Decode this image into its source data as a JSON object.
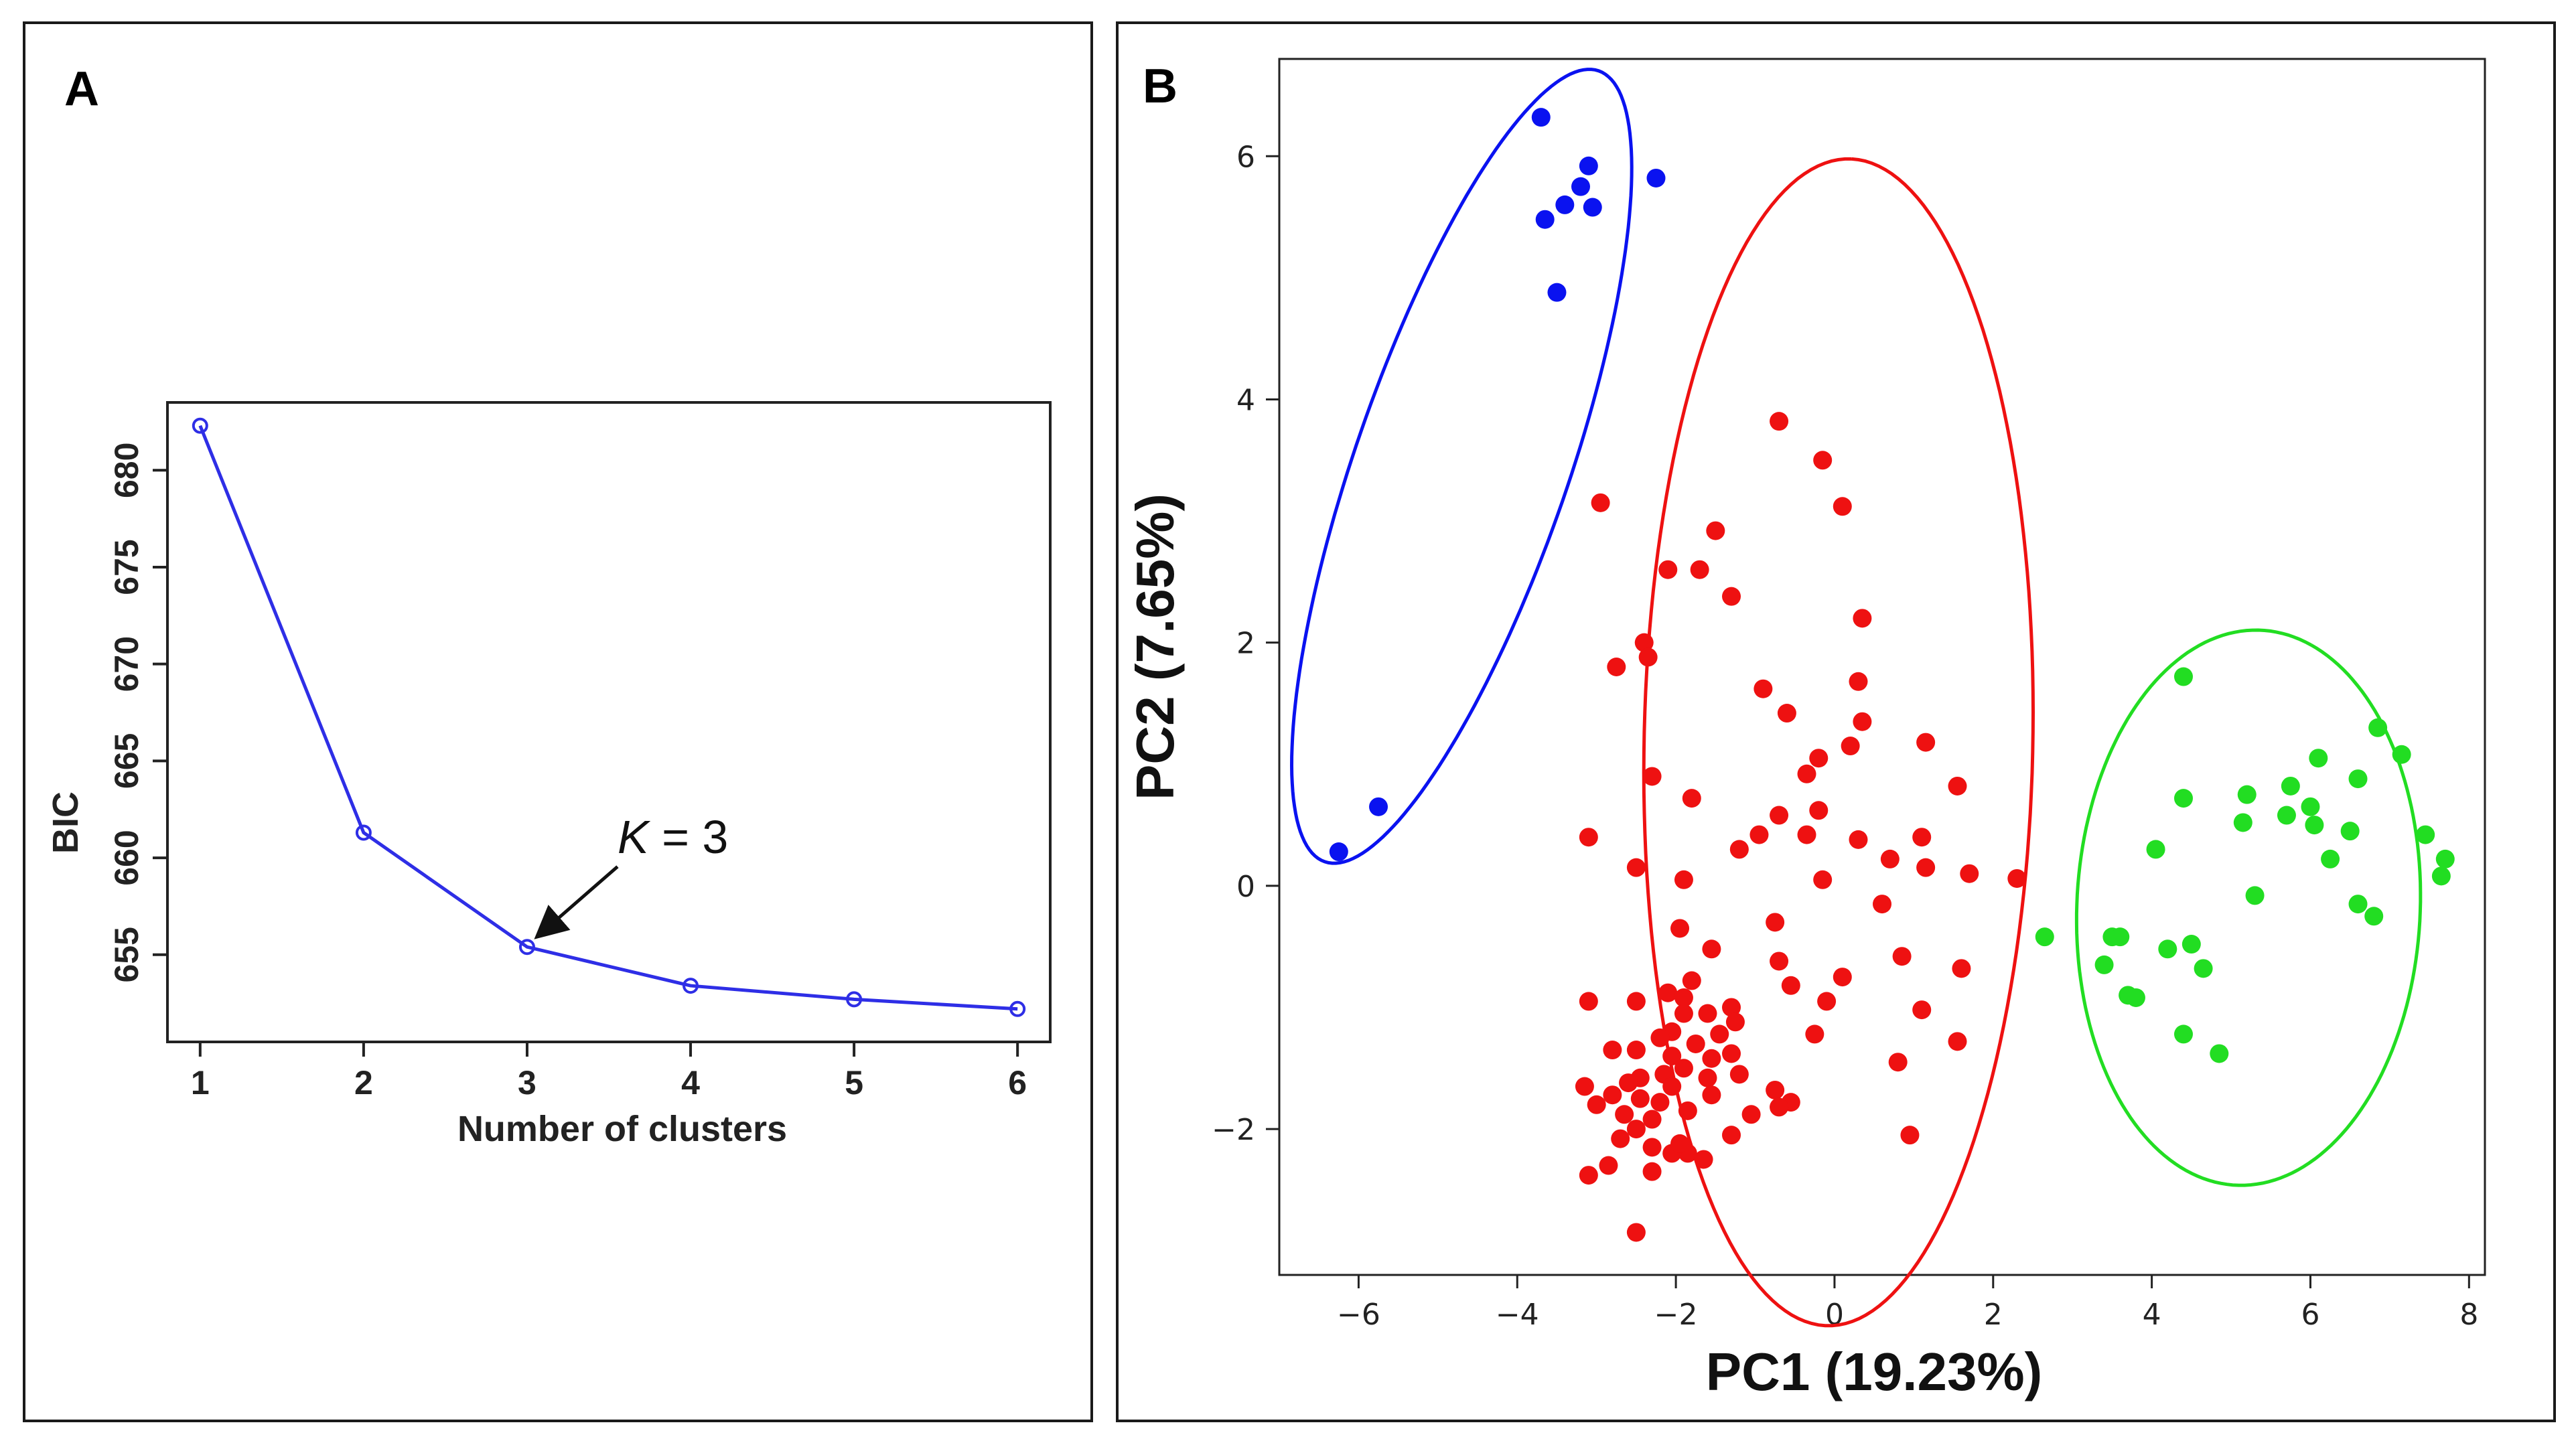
{
  "chart_data": [
    {
      "panel": "A",
      "type": "line",
      "xlabel": "Number of clusters",
      "ylabel": "BIC",
      "x": [
        1,
        2,
        3,
        4,
        5,
        6
      ],
      "y": [
        682.3,
        661.3,
        655.4,
        653.4,
        652.7,
        652.2
      ],
      "xlim": [
        0.8,
        6.2
      ],
      "ylim": [
        650.5,
        683.5
      ],
      "xticks": [
        1,
        2,
        3,
        4,
        5,
        6
      ],
      "yticks": [
        655,
        660,
        665,
        670,
        675,
        680
      ],
      "series_color": "#2e2ee6",
      "annotation": {
        "text_italic": "K",
        "text_rest": " = 3",
        "points_to": {
          "x": 3,
          "y": 655.4
        }
      }
    },
    {
      "panel": "B",
      "type": "scatter",
      "xlabel": "PC1 (19.23%)",
      "ylabel": "PC2 (7.65%)",
      "xlim": [
        -7,
        8.2
      ],
      "ylim": [
        -3.2,
        6.8
      ],
      "xticks": [
        -6,
        -4,
        -2,
        0,
        2,
        4,
        6,
        8
      ],
      "xtick_labels": [
        "−6",
        "−4",
        "−2",
        "0",
        "2",
        "4",
        "6",
        "8"
      ],
      "yticks": [
        -2,
        0,
        2,
        4,
        6
      ],
      "ytick_labels": [
        "−2",
        "0",
        "2",
        "4",
        "6"
      ],
      "series": [
        {
          "name": "cluster-blue",
          "color": "#0a12f0",
          "ellipse": {
            "cx": -4.7,
            "cy": 3.45,
            "rx": 3.7,
            "ry": 1.25,
            "angle_deg": 60
          },
          "points": [
            [
              -3.7,
              6.32
            ],
            [
              -3.1,
              5.92
            ],
            [
              -3.2,
              5.75
            ],
            [
              -2.25,
              5.82
            ],
            [
              -3.4,
              5.6
            ],
            [
              -3.05,
              5.58
            ],
            [
              -3.65,
              5.48
            ],
            [
              -3.5,
              4.88
            ],
            [
              -5.75,
              0.65
            ],
            [
              -6.25,
              0.28
            ]
          ]
        },
        {
          "name": "cluster-red",
          "color": "#ee1111",
          "ellipse": {
            "cx": 0.05,
            "cy": 1.18,
            "rx": 4.8,
            "ry": 2.45,
            "angle_deg": 88
          },
          "points": [
            [
              -0.7,
              3.82
            ],
            [
              -0.15,
              3.5
            ],
            [
              0.1,
              3.12
            ],
            [
              -2.95,
              3.15
            ],
            [
              -1.5,
              2.92
            ],
            [
              -2.1,
              2.6
            ],
            [
              -1.7,
              2.6
            ],
            [
              -1.3,
              2.38
            ],
            [
              0.35,
              2.2
            ],
            [
              -2.4,
              2.0
            ],
            [
              -2.35,
              1.88
            ],
            [
              -2.75,
              1.8
            ],
            [
              -0.9,
              1.62
            ],
            [
              0.3,
              1.68
            ],
            [
              -0.6,
              1.42
            ],
            [
              0.35,
              1.35
            ],
            [
              1.15,
              1.18
            ],
            [
              0.2,
              1.15
            ],
            [
              -0.2,
              1.05
            ],
            [
              -2.3,
              0.9
            ],
            [
              -0.35,
              0.92
            ],
            [
              1.55,
              0.82
            ],
            [
              -1.8,
              0.72
            ],
            [
              -0.7,
              0.58
            ],
            [
              -0.2,
              0.62
            ],
            [
              -3.1,
              0.4
            ],
            [
              -0.95,
              0.42
            ],
            [
              -0.35,
              0.42
            ],
            [
              0.3,
              0.38
            ],
            [
              1.1,
              0.4
            ],
            [
              -1.2,
              0.3
            ],
            [
              0.7,
              0.22
            ],
            [
              -2.5,
              0.15
            ],
            [
              1.15,
              0.15
            ],
            [
              1.7,
              0.1
            ],
            [
              2.3,
              0.06
            ],
            [
              -1.9,
              0.05
            ],
            [
              -0.15,
              0.05
            ],
            [
              0.6,
              -0.15
            ],
            [
              -1.95,
              -0.35
            ],
            [
              -0.75,
              -0.3
            ],
            [
              -1.55,
              -0.52
            ],
            [
              -0.7,
              -0.62
            ],
            [
              0.85,
              -0.58
            ],
            [
              1.6,
              -0.68
            ],
            [
              -0.55,
              -0.82
            ],
            [
              -1.8,
              -0.78
            ],
            [
              0.1,
              -0.75
            ],
            [
              -2.1,
              -0.88
            ],
            [
              -1.9,
              -0.92
            ],
            [
              -2.5,
              -0.95
            ],
            [
              -3.1,
              -0.95
            ],
            [
              -0.1,
              -0.95
            ],
            [
              -1.3,
              -1.0
            ],
            [
              -1.9,
              -1.05
            ],
            [
              -1.6,
              -1.05
            ],
            [
              1.1,
              -1.02
            ],
            [
              -1.25,
              -1.12
            ],
            [
              -2.05,
              -1.2
            ],
            [
              -2.2,
              -1.25
            ],
            [
              -1.45,
              -1.22
            ],
            [
              -0.25,
              -1.22
            ],
            [
              -1.75,
              -1.3
            ],
            [
              -2.5,
              -1.35
            ],
            [
              -2.05,
              -1.4
            ],
            [
              -1.3,
              -1.38
            ],
            [
              -1.55,
              -1.42
            ],
            [
              1.55,
              -1.28
            ],
            [
              -2.8,
              -1.35
            ],
            [
              -1.9,
              -1.5
            ],
            [
              -2.15,
              -1.55
            ],
            [
              -2.45,
              -1.58
            ],
            [
              -1.6,
              -1.58
            ],
            [
              -1.2,
              -1.55
            ],
            [
              0.8,
              -1.45
            ],
            [
              -3.15,
              -1.65
            ],
            [
              -2.6,
              -1.62
            ],
            [
              -2.05,
              -1.65
            ],
            [
              -1.55,
              -1.72
            ],
            [
              -0.75,
              -1.68
            ],
            [
              -2.8,
              -1.72
            ],
            [
              -2.45,
              -1.75
            ],
            [
              -2.2,
              -1.78
            ],
            [
              -0.55,
              -1.78
            ],
            [
              -3.0,
              -1.8
            ],
            [
              -2.65,
              -1.88
            ],
            [
              -1.85,
              -1.85
            ],
            [
              -0.7,
              -1.82
            ],
            [
              -2.3,
              -1.92
            ],
            [
              -1.05,
              -1.88
            ],
            [
              -2.5,
              -2.0
            ],
            [
              -1.3,
              -2.05
            ],
            [
              0.95,
              -2.05
            ],
            [
              -2.85,
              -2.3
            ],
            [
              -3.1,
              -2.38
            ],
            [
              -2.3,
              -2.15
            ],
            [
              -1.85,
              -2.2
            ],
            [
              -2.05,
              -2.2
            ],
            [
              -1.65,
              -2.25
            ],
            [
              -2.3,
              -2.35
            ],
            [
              -2.5,
              -2.85
            ],
            [
              -2.7,
              -2.08
            ],
            [
              -1.95,
              -2.12
            ]
          ]
        },
        {
          "name": "cluster-green",
          "color": "#22dd22",
          "ellipse": {
            "cx": 5.22,
            "cy": -0.18,
            "rx": 2.3,
            "ry": 2.15,
            "angle_deg": 70
          },
          "points": [
            [
              4.4,
              1.72
            ],
            [
              6.85,
              1.3
            ],
            [
              7.15,
              1.08
            ],
            [
              6.1,
              1.05
            ],
            [
              6.6,
              0.88
            ],
            [
              5.75,
              0.82
            ],
            [
              5.2,
              0.75
            ],
            [
              4.4,
              0.72
            ],
            [
              6.0,
              0.65
            ],
            [
              5.7,
              0.58
            ],
            [
              5.15,
              0.52
            ],
            [
              6.05,
              0.5
            ],
            [
              6.5,
              0.45
            ],
            [
              7.45,
              0.42
            ],
            [
              4.05,
              0.3
            ],
            [
              6.25,
              0.22
            ],
            [
              7.7,
              0.22
            ],
            [
              7.65,
              0.08
            ],
            [
              5.3,
              -0.08
            ],
            [
              6.6,
              -0.15
            ],
            [
              6.8,
              -0.25
            ],
            [
              2.65,
              -0.42
            ],
            [
              3.5,
              -0.42
            ],
            [
              3.6,
              -0.42
            ],
            [
              4.2,
              -0.52
            ],
            [
              4.5,
              -0.48
            ],
            [
              3.4,
              -0.65
            ],
            [
              4.65,
              -0.68
            ],
            [
              3.7,
              -0.9
            ],
            [
              3.8,
              -0.92
            ],
            [
              4.4,
              -1.22
            ],
            [
              4.85,
              -1.38
            ]
          ]
        }
      ]
    }
  ]
}
